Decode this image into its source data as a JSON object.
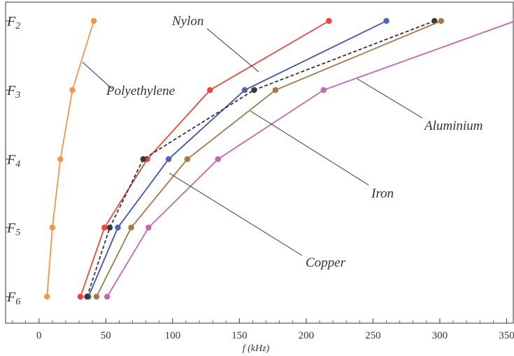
{
  "chart_data": {
    "type": "line",
    "xlabel": "f (kHz)",
    "xlim": [
      -25,
      355
    ],
    "xticks": [
      0,
      50,
      100,
      150,
      200,
      250,
      300,
      350
    ],
    "xtick_labels": [
      "0",
      "50",
      "100",
      "150",
      "200",
      "250",
      "300",
      "350"
    ],
    "categories": [
      "F6",
      "F5",
      "F4",
      "F3",
      "F2"
    ],
    "ytick_labels": [
      {
        "main": "F",
        "sub": "6"
      },
      {
        "main": "F",
        "sub": "5"
      },
      {
        "main": "F",
        "sub": "4"
      },
      {
        "main": "F",
        "sub": "3"
      },
      {
        "main": "F",
        "sub": "2"
      }
    ],
    "grid": false,
    "legend": "none",
    "series": [
      {
        "name": "Polyethylene",
        "color": "#f2974a",
        "dashed": false,
        "marker_color": "#f2974a",
        "x": [
          6,
          10,
          16,
          25,
          41
        ]
      },
      {
        "name": "Nylon",
        "color": "#e8473b",
        "dashed": false,
        "marker_color": "#e8473b",
        "x": [
          31,
          49,
          81,
          128,
          217
        ]
      },
      {
        "name": "Copper",
        "color": "#3d55a8",
        "dashed": false,
        "marker_color": "#5063b5",
        "x": [
          37,
          59,
          97,
          154,
          260
        ]
      },
      {
        "name": "",
        "color": "#333333",
        "dashed": true,
        "marker_color": "#3a3a3a",
        "x": [
          36,
          53,
          78,
          161,
          296
        ]
      },
      {
        "name": "Iron",
        "color": "#a4784a",
        "dashed": false,
        "marker_color": "#a4784a",
        "x": [
          43,
          69,
          111,
          177,
          301
        ]
      },
      {
        "name": "Aluminium",
        "color": "#c567ad",
        "dashed": false,
        "marker_color": "#c567ad",
        "x": [
          51,
          82,
          134,
          213
        ],
        "x_end": 355
      }
    ],
    "annotations": [
      {
        "text": "Polyethylene",
        "series": "Polyethylene"
      },
      {
        "text": "Nylon",
        "series": "Nylon"
      },
      {
        "text": "Iron",
        "series": "Iron"
      },
      {
        "text": "Aluminium",
        "series": "Aluminium"
      },
      {
        "text": "Copper",
        "series": "Copper"
      }
    ]
  }
}
